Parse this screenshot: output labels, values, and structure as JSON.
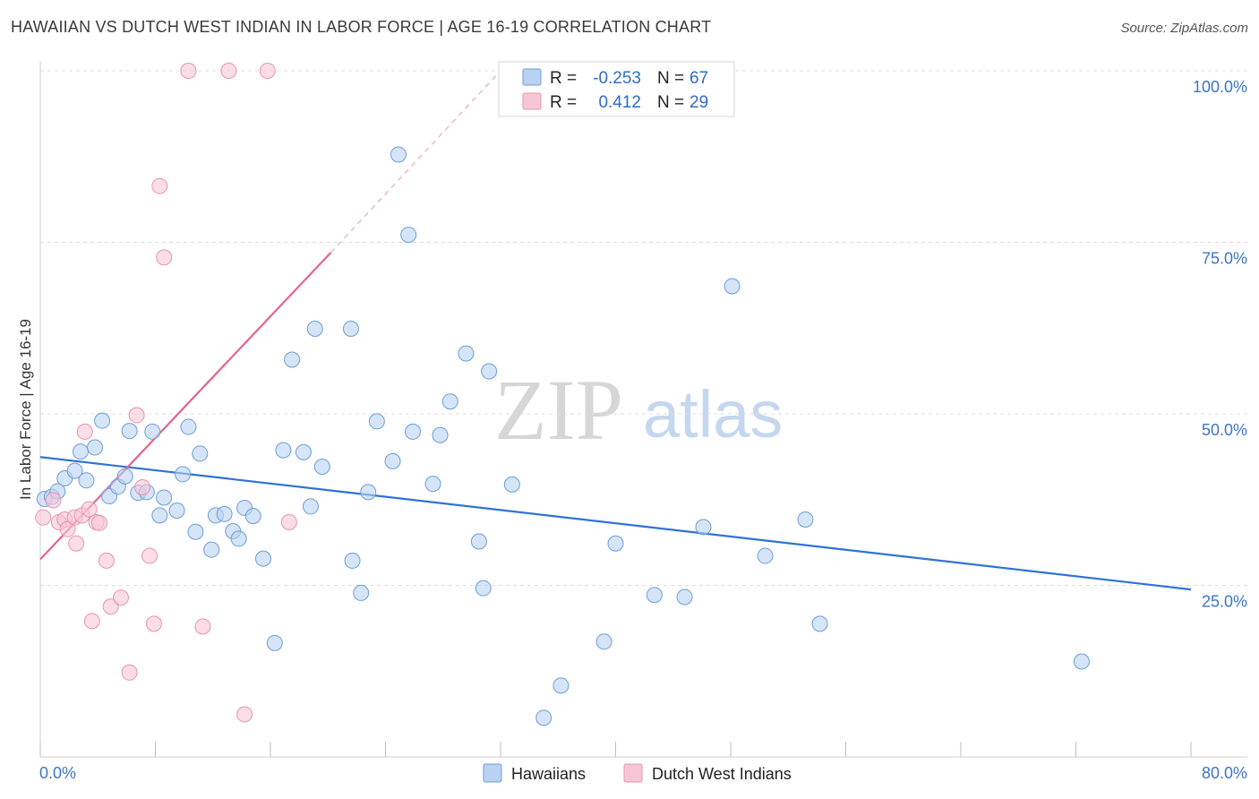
{
  "header": {
    "title": "HAWAIIAN VS DUTCH WEST INDIAN IN LABOR FORCE | AGE 16-19 CORRELATION CHART",
    "source": "Source: ZipAtlas.com"
  },
  "watermark": {
    "zip": "ZIP",
    "atlas": "atlas"
  },
  "colors": {
    "hawaiians_fill": "#b9d2f2",
    "hawaiians_stroke": "#6c9ed6",
    "hawaiians_line": "#2f72d3",
    "dutch_fill": "#f7c6d6",
    "dutch_stroke": "#e794b1",
    "dutch_line": "#e4638f",
    "tick_text": "#3d74c6",
    "grid": "#dddddd"
  },
  "legend": {
    "rows": [
      {
        "r_label": "R =",
        "r_value": "-0.253",
        "n_label": "N =",
        "n_value": "67"
      },
      {
        "r_label": "R =",
        "r_value": "0.412",
        "n_label": "N =",
        "n_value": "29"
      }
    ]
  },
  "bottom_legend": [
    "Hawaiians",
    "Dutch West Indians"
  ],
  "chart_data": {
    "type": "scatter",
    "title": "HAWAIIAN VS DUTCH WEST INDIAN IN LABOR FORCE | AGE 16-19 CORRELATION CHART",
    "xlabel": "",
    "ylabel": "In Labor Force | Age 16-19",
    "xlim": [
      0,
      80
    ],
    "ylim": [
      0,
      100
    ],
    "x_tick_labels": [
      "0.0%",
      "80.0%"
    ],
    "y_tick_labels": [
      "25.0%",
      "50.0%",
      "75.0%",
      "100.0%"
    ],
    "y_ticks": [
      25,
      50,
      75,
      100
    ],
    "x_minor_ticks": [
      0,
      8,
      16,
      24,
      32,
      40,
      48,
      56,
      64,
      72,
      80
    ],
    "legend_position": "bottom-center",
    "series": [
      {
        "name": "Hawaiians",
        "r": -0.253,
        "n": 67,
        "trend": {
          "x": [
            0,
            80
          ],
          "y": [
            43.7,
            24.4
          ]
        },
        "points": [
          [
            0.3,
            37.6
          ],
          [
            0.8,
            37.9
          ],
          [
            1.2,
            38.7
          ],
          [
            1.7,
            40.6
          ],
          [
            2.4,
            41.7
          ],
          [
            2.8,
            44.5
          ],
          [
            3.2,
            40.3
          ],
          [
            3.8,
            45.1
          ],
          [
            4.3,
            49.0
          ],
          [
            4.8,
            38.0
          ],
          [
            5.4,
            39.4
          ],
          [
            5.9,
            40.9
          ],
          [
            6.2,
            47.5
          ],
          [
            6.8,
            38.5
          ],
          [
            7.4,
            38.6
          ],
          [
            7.8,
            47.4
          ],
          [
            8.3,
            35.2
          ],
          [
            8.6,
            37.8
          ],
          [
            9.5,
            35.9
          ],
          [
            9.9,
            41.2
          ],
          [
            10.3,
            48.1
          ],
          [
            10.8,
            32.8
          ],
          [
            11.1,
            44.2
          ],
          [
            11.9,
            30.2
          ],
          [
            12.2,
            35.2
          ],
          [
            12.8,
            35.4
          ],
          [
            13.4,
            32.9
          ],
          [
            13.8,
            31.8
          ],
          [
            14.2,
            36.3
          ],
          [
            14.8,
            35.1
          ],
          [
            15.5,
            28.9
          ],
          [
            16.3,
            16.6
          ],
          [
            16.9,
            44.7
          ],
          [
            17.5,
            57.9
          ],
          [
            18.3,
            44.4
          ],
          [
            18.8,
            36.5
          ],
          [
            19.1,
            62.4
          ],
          [
            19.6,
            42.3
          ],
          [
            21.6,
            62.4
          ],
          [
            21.7,
            28.6
          ],
          [
            22.3,
            23.9
          ],
          [
            22.8,
            38.6
          ],
          [
            23.4,
            48.9
          ],
          [
            24.5,
            43.1
          ],
          [
            24.9,
            87.8
          ],
          [
            25.6,
            76.1
          ],
          [
            25.9,
            47.4
          ],
          [
            27.3,
            39.8
          ],
          [
            27.8,
            46.9
          ],
          [
            28.5,
            51.8
          ],
          [
            29.6,
            58.8
          ],
          [
            30.5,
            31.4
          ],
          [
            30.8,
            24.6
          ],
          [
            31.2,
            56.2
          ],
          [
            32.8,
            39.7
          ],
          [
            35.0,
            5.7
          ],
          [
            36.2,
            10.4
          ],
          [
            39.2,
            16.8
          ],
          [
            40.0,
            31.1
          ],
          [
            42.7,
            23.6
          ],
          [
            44.8,
            23.3
          ],
          [
            46.1,
            33.5
          ],
          [
            48.1,
            68.6
          ],
          [
            50.4,
            29.3
          ],
          [
            53.2,
            34.6
          ],
          [
            54.2,
            19.4
          ],
          [
            72.4,
            13.9
          ]
        ]
      },
      {
        "name": "Dutch West Indians",
        "r": 0.412,
        "n": 29,
        "trend": {
          "x": [
            0,
            20.2
          ],
          "y": [
            28.8,
            73.5
          ]
        },
        "trend_extension": {
          "x": [
            20.2,
            32.0
          ],
          "y": [
            73.5,
            100
          ]
        },
        "points": [
          [
            0.2,
            34.9
          ],
          [
            0.9,
            37.4
          ],
          [
            1.3,
            34.2
          ],
          [
            1.7,
            34.6
          ],
          [
            1.9,
            33.2
          ],
          [
            2.4,
            34.9
          ],
          [
            2.5,
            31.1
          ],
          [
            2.9,
            35.2
          ],
          [
            3.1,
            47.4
          ],
          [
            3.4,
            36.1
          ],
          [
            3.6,
            19.8
          ],
          [
            3.9,
            34.2
          ],
          [
            4.1,
            34.1
          ],
          [
            4.6,
            28.6
          ],
          [
            4.9,
            21.9
          ],
          [
            5.6,
            23.2
          ],
          [
            6.2,
            12.3
          ],
          [
            6.7,
            49.8
          ],
          [
            7.1,
            39.3
          ],
          [
            7.6,
            29.3
          ],
          [
            7.9,
            19.4
          ],
          [
            8.3,
            83.2
          ],
          [
            8.6,
            72.8
          ],
          [
            10.3,
            100
          ],
          [
            11.3,
            19.0
          ],
          [
            13.1,
            100
          ],
          [
            14.2,
            6.2
          ],
          [
            15.8,
            100
          ],
          [
            17.3,
            34.2
          ]
        ]
      }
    ]
  }
}
